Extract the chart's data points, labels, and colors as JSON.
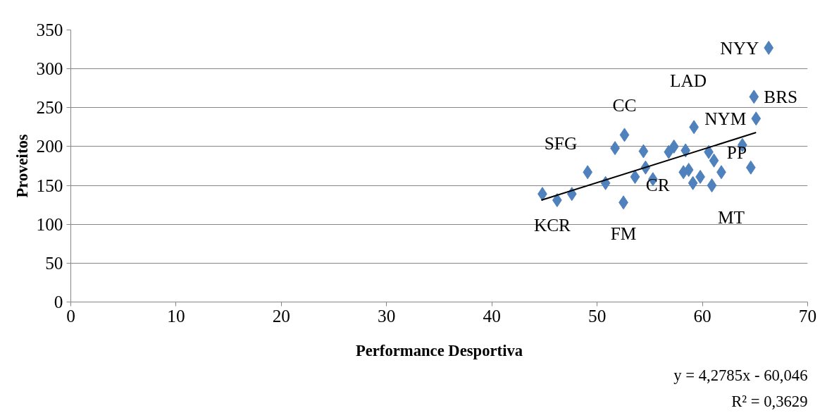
{
  "chart_data": {
    "type": "scatter",
    "xlabel": "Performance Desportiva",
    "ylabel": "Proveitos",
    "xlim": [
      0,
      70
    ],
    "ylim": [
      0,
      350
    ],
    "xticks": [
      0,
      10,
      20,
      30,
      40,
      50,
      60,
      70
    ],
    "yticks": [
      0,
      50,
      100,
      150,
      200,
      250,
      300,
      350
    ],
    "grid": "y",
    "series": [
      {
        "color": "#4f81bd",
        "marker": "diamond",
        "x": [
          66.3,
          64.9,
          65.1,
          59.2,
          52.6,
          51.7,
          54.4,
          57.3,
          56.8,
          58.4,
          60.6,
          61.1,
          63.8,
          64.6,
          61.8,
          60.9,
          59.8,
          59.1,
          58.7,
          58.2,
          55.3,
          54.6,
          53.6,
          50.8,
          49.1,
          47.6,
          46.2,
          44.8,
          52.5
        ],
        "values": [
          327,
          264,
          236,
          225,
          215,
          198,
          194,
          200,
          193,
          195,
          193,
          182,
          202,
          173,
          167,
          150,
          161,
          153,
          170,
          167,
          158,
          173,
          161,
          153,
          167,
          139,
          131,
          139,
          128
        ]
      },
      {
        "type": "line",
        "color": "#000000",
        "x": [
          44.7,
          65.1
        ],
        "values": [
          131,
          218
        ]
      }
    ],
    "annotations": [
      {
        "text": "NYY",
        "x": 66.3,
        "y": 327
      },
      {
        "text": "BRS",
        "x": 64.9,
        "y": 264
      },
      {
        "text": "NYM",
        "x": 65.1,
        "y": 236
      },
      {
        "text": "LAD",
        "x": 59.2,
        "y": 225
      },
      {
        "text": "CC",
        "x": 52.6,
        "y": 215
      },
      {
        "text": "SFG",
        "x": 49.1,
        "y": 167
      },
      {
        "text": "PP",
        "x": 63.8,
        "y": 202
      },
      {
        "text": "CR",
        "x": 55.3,
        "y": 158
      },
      {
        "text": "MT",
        "x": 61.8,
        "y": 167
      },
      {
        "text": "KCR",
        "x": 44.8,
        "y": 139
      },
      {
        "text": "FM",
        "x": 52.5,
        "y": 128
      },
      "y = 4,2785x - 60,046",
      "R² = 0,3629"
    ]
  }
}
